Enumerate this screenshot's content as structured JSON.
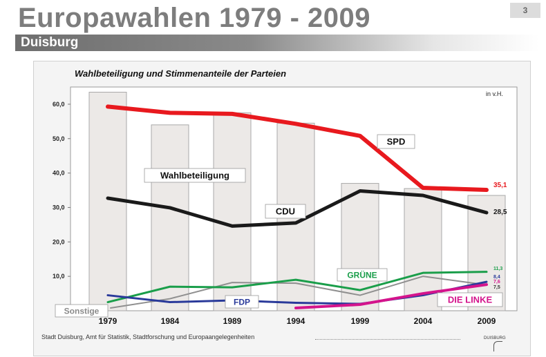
{
  "header": {
    "title": "Europawahlen 1979 - 2009",
    "page_number": "3",
    "subtitle": "Duisburg"
  },
  "footer": {
    "source": "Stadt Duisburg, Amt für Statistik, Stadtforschung und Europaangelegenheiten",
    "logo_text": "DUISBURG"
  },
  "colors": {
    "SPD": "#e8191e",
    "CDU": "#1a1a1a",
    "GRUENE": "#1a9e4a",
    "FDP": "#2a3a9a",
    "DIE_LINKE": "#d4148c",
    "Sonstige": "#8f8f8f",
    "bars": "#ece9e7"
  },
  "chart_data": {
    "type": "bar",
    "title": "Wahlbeteiligung und Stimmenanteile der Parteien",
    "unit": "in v.H.",
    "categories": [
      "1979",
      "1984",
      "1989",
      "1994",
      "1999",
      "2004",
      "2009"
    ],
    "ylim": [
      0,
      65
    ],
    "yticks": [
      "60,0",
      "50,0",
      "40,0",
      "30,0",
      "20,0",
      "10,0"
    ],
    "ytick_values": [
      60,
      50,
      40,
      30,
      20,
      10
    ],
    "grid": false,
    "bar_series": {
      "name": "Wahlbeteiligung",
      "values": [
        63.5,
        54.0,
        57.5,
        54.5,
        37.0,
        35.5,
        33.5
      ]
    },
    "series": [
      {
        "name": "SPD",
        "values": [
          59.3,
          57.5,
          57.2,
          54.3,
          50.8,
          35.7,
          35.1
        ],
        "end_label": "35,1"
      },
      {
        "name": "CDU",
        "values": [
          32.7,
          29.9,
          24.6,
          25.5,
          34.8,
          33.5,
          28.5
        ],
        "end_label": "28,5"
      },
      {
        "name": "GRÜNE",
        "values": [
          2.5,
          7.0,
          6.8,
          9.0,
          6.0,
          11.0,
          11.3
        ],
        "end_label": "11,3"
      },
      {
        "name": "FDP",
        "values": [
          4.5,
          2.5,
          3.0,
          2.3,
          2.0,
          4.5,
          8.4
        ],
        "end_label": "8,4"
      },
      {
        "name": "DIE LINKE",
        "values": [
          null,
          null,
          null,
          0.8,
          1.8,
          5.0,
          7.6
        ],
        "end_label": "7,6"
      },
      {
        "name": "Sonstige",
        "values": [
          0.8,
          3.5,
          8.2,
          8.0,
          4.5,
          10.0,
          7.5
        ],
        "end_label": "7,5"
      }
    ],
    "labels": {
      "turnout": "Wahlbeteiligung",
      "spd": "SPD",
      "cdu": "CDU",
      "gruene": "GRÜNE",
      "fdp": "FDP",
      "linke": "DIE LINKE",
      "sonstige": "Sonstige"
    }
  }
}
